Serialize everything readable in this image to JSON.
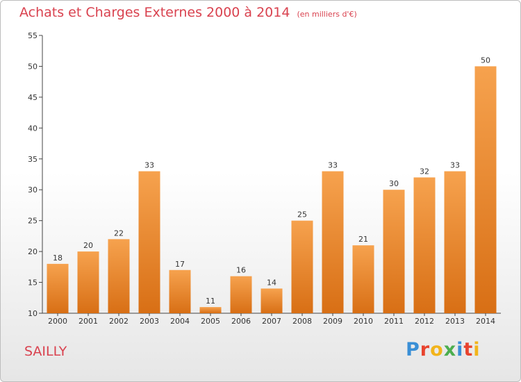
{
  "header": {
    "title": "Achats et Charges Externes 2000 à 2014",
    "subtitle": "(en milliers d'€)"
  },
  "footer": {
    "place": "SAILLY",
    "brand": "Proxiti",
    "brand_colors": [
      "#3a8fd6",
      "#e8432e",
      "#f2b41b",
      "#4cae4f",
      "#3a8fd6",
      "#e8432e",
      "#f2b41b"
    ]
  },
  "colors": {
    "bar_light": "#f6a24e",
    "bar_dark": "#d86f15",
    "title": "#d9424f"
  },
  "chart_data": {
    "type": "bar",
    "title": "Achats et Charges Externes 2000 à 2014",
    "subtitle": "(en milliers d'€)",
    "categories": [
      "2000",
      "2001",
      "2002",
      "2003",
      "2004",
      "2005",
      "2006",
      "2007",
      "2008",
      "2009",
      "2010",
      "2011",
      "2012",
      "2013",
      "2014"
    ],
    "values": [
      18,
      20,
      22,
      33,
      17,
      11,
      16,
      14,
      25,
      33,
      21,
      30,
      32,
      33,
      50
    ],
    "ylim": [
      10,
      55
    ],
    "yticks": [
      10,
      15,
      20,
      25,
      30,
      35,
      40,
      45,
      50,
      55
    ],
    "grid": false,
    "xlabel": "",
    "ylabel": ""
  }
}
